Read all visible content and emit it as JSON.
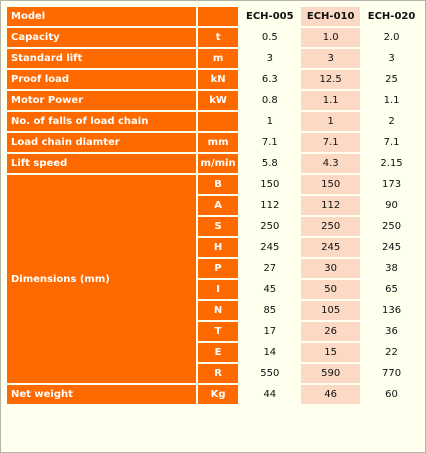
{
  "models": [
    "ECH-005",
    "ECH-010",
    "ECH-020"
  ],
  "rows": {
    "model": {
      "label": "Model",
      "unit": "",
      "values": [
        "ECH-005",
        "ECH-010",
        "ECH-020"
      ]
    },
    "capacity": {
      "label": "Capacity",
      "unit": "t",
      "values": [
        "0.5",
        "1.0",
        "2.0"
      ]
    },
    "standard_lift": {
      "label": "Standard lift",
      "unit": "m",
      "values": [
        "3",
        "3",
        "3"
      ]
    },
    "proof_load": {
      "label": "Proof load",
      "unit": "kN",
      "values": [
        "6.3",
        "12.5",
        "25"
      ]
    },
    "motor_power": {
      "label": "Motor Power",
      "unit": "kW",
      "values": [
        "0.8",
        "1.1",
        "1.1"
      ]
    },
    "falls": {
      "label": "No. of falls of load chain",
      "unit": "",
      "values": [
        "1",
        "1",
        "2"
      ]
    },
    "chain_diameter": {
      "label": "Load chain diamter",
      "unit": "mm",
      "values": [
        "7.1",
        "7.1",
        "7.1"
      ]
    },
    "lift_speed": {
      "label": "Lift speed",
      "unit": "m/min",
      "values": [
        "5.8",
        "4.3",
        "2.15"
      ]
    },
    "net_weight": {
      "label": "Net weight",
      "unit": "Kg",
      "values": [
        "44",
        "46",
        "60"
      ]
    }
  },
  "dimensions": {
    "label": "Dimensions (mm)",
    "rows": [
      {
        "key": "B",
        "values": [
          "150",
          "150",
          "173"
        ]
      },
      {
        "key": "A",
        "values": [
          "112",
          "112",
          "90"
        ]
      },
      {
        "key": "S",
        "values": [
          "250",
          "250",
          "250"
        ]
      },
      {
        "key": "H",
        "values": [
          "245",
          "245",
          "245"
        ]
      },
      {
        "key": "P",
        "values": [
          "27",
          "30",
          "38"
        ]
      },
      {
        "key": "I",
        "values": [
          "45",
          "50",
          "65"
        ]
      },
      {
        "key": "N",
        "values": [
          "85",
          "105",
          "136"
        ]
      },
      {
        "key": "T",
        "values": [
          "17",
          "26",
          "36"
        ]
      },
      {
        "key": "E",
        "values": [
          "14",
          "15",
          "22"
        ]
      },
      {
        "key": "R",
        "values": [
          "550",
          "590",
          "770"
        ]
      }
    ]
  },
  "colors": {
    "label_bg": "#ff6a00",
    "label_text": "#ffffff",
    "highlight_col": "#fcd9c4",
    "page_bg": "#ffffee"
  }
}
